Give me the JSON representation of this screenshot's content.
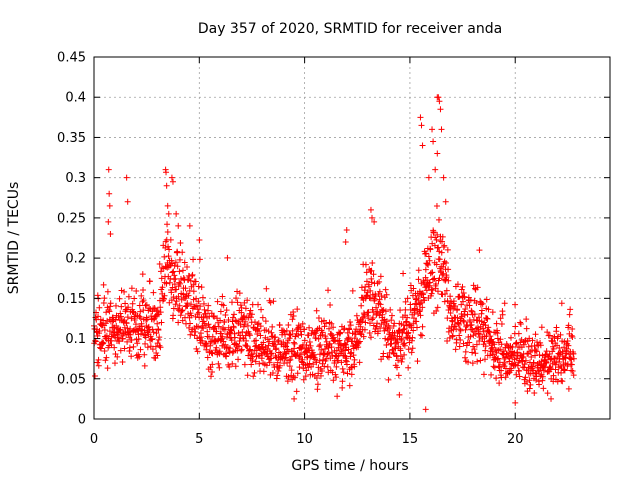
{
  "chart_data": {
    "type": "scatter",
    "title": "Day 357 of 2020, SRMTID for receiver anda",
    "xlabel": "GPS time / hours",
    "ylabel": "SRMTID / TECUs",
    "xlim": [
      0,
      24.5
    ],
    "ylim": [
      0,
      0.45
    ],
    "xticks": [
      0,
      5,
      10,
      15,
      20
    ],
    "xtick_labels": [
      "0",
      "5",
      "10",
      "15",
      "20"
    ],
    "yticks": [
      0,
      0.05,
      0.1,
      0.15,
      0.2,
      0.25,
      0.3,
      0.35,
      0.4,
      0.45
    ],
    "ytick_labels": [
      "0",
      "0.05",
      "0.1",
      "0.15",
      "0.2",
      "0.25",
      "0.3",
      "0.35",
      "0.4",
      "0.45"
    ],
    "grid": true,
    "marker": "+",
    "color": "#ff0000",
    "series": [
      {
        "name": "SRMTID",
        "x_range": [
          0,
          22.8
        ],
        "sample_step_hours": 0.012,
        "baseline_profile": [
          [
            0.0,
            0.1
          ],
          [
            1.0,
            0.11
          ],
          [
            2.0,
            0.12
          ],
          [
            3.0,
            0.12
          ],
          [
            3.5,
            0.2
          ],
          [
            4.0,
            0.16
          ],
          [
            4.5,
            0.15
          ],
          [
            5.0,
            0.13
          ],
          [
            5.5,
            0.09
          ],
          [
            6.0,
            0.1
          ],
          [
            7.0,
            0.11
          ],
          [
            8.0,
            0.09
          ],
          [
            9.0,
            0.09
          ],
          [
            10.0,
            0.08
          ],
          [
            11.0,
            0.09
          ],
          [
            12.0,
            0.08
          ],
          [
            12.5,
            0.1
          ],
          [
            13.0,
            0.15
          ],
          [
            13.5,
            0.14
          ],
          [
            14.0,
            0.1
          ],
          [
            14.5,
            0.09
          ],
          [
            15.0,
            0.12
          ],
          [
            15.5,
            0.14
          ],
          [
            16.0,
            0.18
          ],
          [
            16.5,
            0.2
          ],
          [
            17.0,
            0.12
          ],
          [
            18.0,
            0.12
          ],
          [
            18.5,
            0.11
          ],
          [
            19.0,
            0.09
          ],
          [
            19.5,
            0.08
          ],
          [
            20.0,
            0.08
          ],
          [
            21.0,
            0.07
          ],
          [
            22.0,
            0.08
          ],
          [
            22.8,
            0.08
          ]
        ],
        "spikes": [
          {
            "x": 0.7,
            "y": 0.31
          },
          {
            "x": 0.72,
            "y": 0.28
          },
          {
            "x": 0.75,
            "y": 0.265
          },
          {
            "x": 0.68,
            "y": 0.245
          },
          {
            "x": 0.78,
            "y": 0.23
          },
          {
            "x": 1.55,
            "y": 0.3
          },
          {
            "x": 1.6,
            "y": 0.27
          },
          {
            "x": 3.4,
            "y": 0.31
          },
          {
            "x": 3.45,
            "y": 0.29
          },
          {
            "x": 3.5,
            "y": 0.265
          },
          {
            "x": 3.55,
            "y": 0.255
          },
          {
            "x": 3.7,
            "y": 0.3
          },
          {
            "x": 3.75,
            "y": 0.295
          },
          {
            "x": 3.9,
            "y": 0.255
          },
          {
            "x": 4.0,
            "y": 0.24
          },
          {
            "x": 4.55,
            "y": 0.24
          },
          {
            "x": 13.15,
            "y": 0.26
          },
          {
            "x": 13.2,
            "y": 0.25
          },
          {
            "x": 13.3,
            "y": 0.245
          },
          {
            "x": 15.5,
            "y": 0.375
          },
          {
            "x": 15.55,
            "y": 0.365
          },
          {
            "x": 15.6,
            "y": 0.34
          },
          {
            "x": 16.05,
            "y": 0.36
          },
          {
            "x": 16.1,
            "y": 0.345
          },
          {
            "x": 16.3,
            "y": 0.4
          },
          {
            "x": 16.35,
            "y": 0.4
          },
          {
            "x": 16.4,
            "y": 0.395
          },
          {
            "x": 16.45,
            "y": 0.385
          },
          {
            "x": 16.5,
            "y": 0.36
          },
          {
            "x": 16.3,
            "y": 0.33
          },
          {
            "x": 16.2,
            "y": 0.31
          },
          {
            "x": 15.9,
            "y": 0.3
          },
          {
            "x": 16.6,
            "y": 0.3
          },
          {
            "x": 16.7,
            "y": 0.27
          },
          {
            "x": 12.0,
            "y": 0.235
          },
          {
            "x": 11.95,
            "y": 0.22
          },
          {
            "x": 18.3,
            "y": 0.21
          },
          {
            "x": 15.75,
            "y": 0.012
          },
          {
            "x": 9.5,
            "y": 0.025
          },
          {
            "x": 14.5,
            "y": 0.03
          },
          {
            "x": 20.0,
            "y": 0.02
          },
          {
            "x": 21.7,
            "y": 0.025
          }
        ]
      }
    ]
  }
}
